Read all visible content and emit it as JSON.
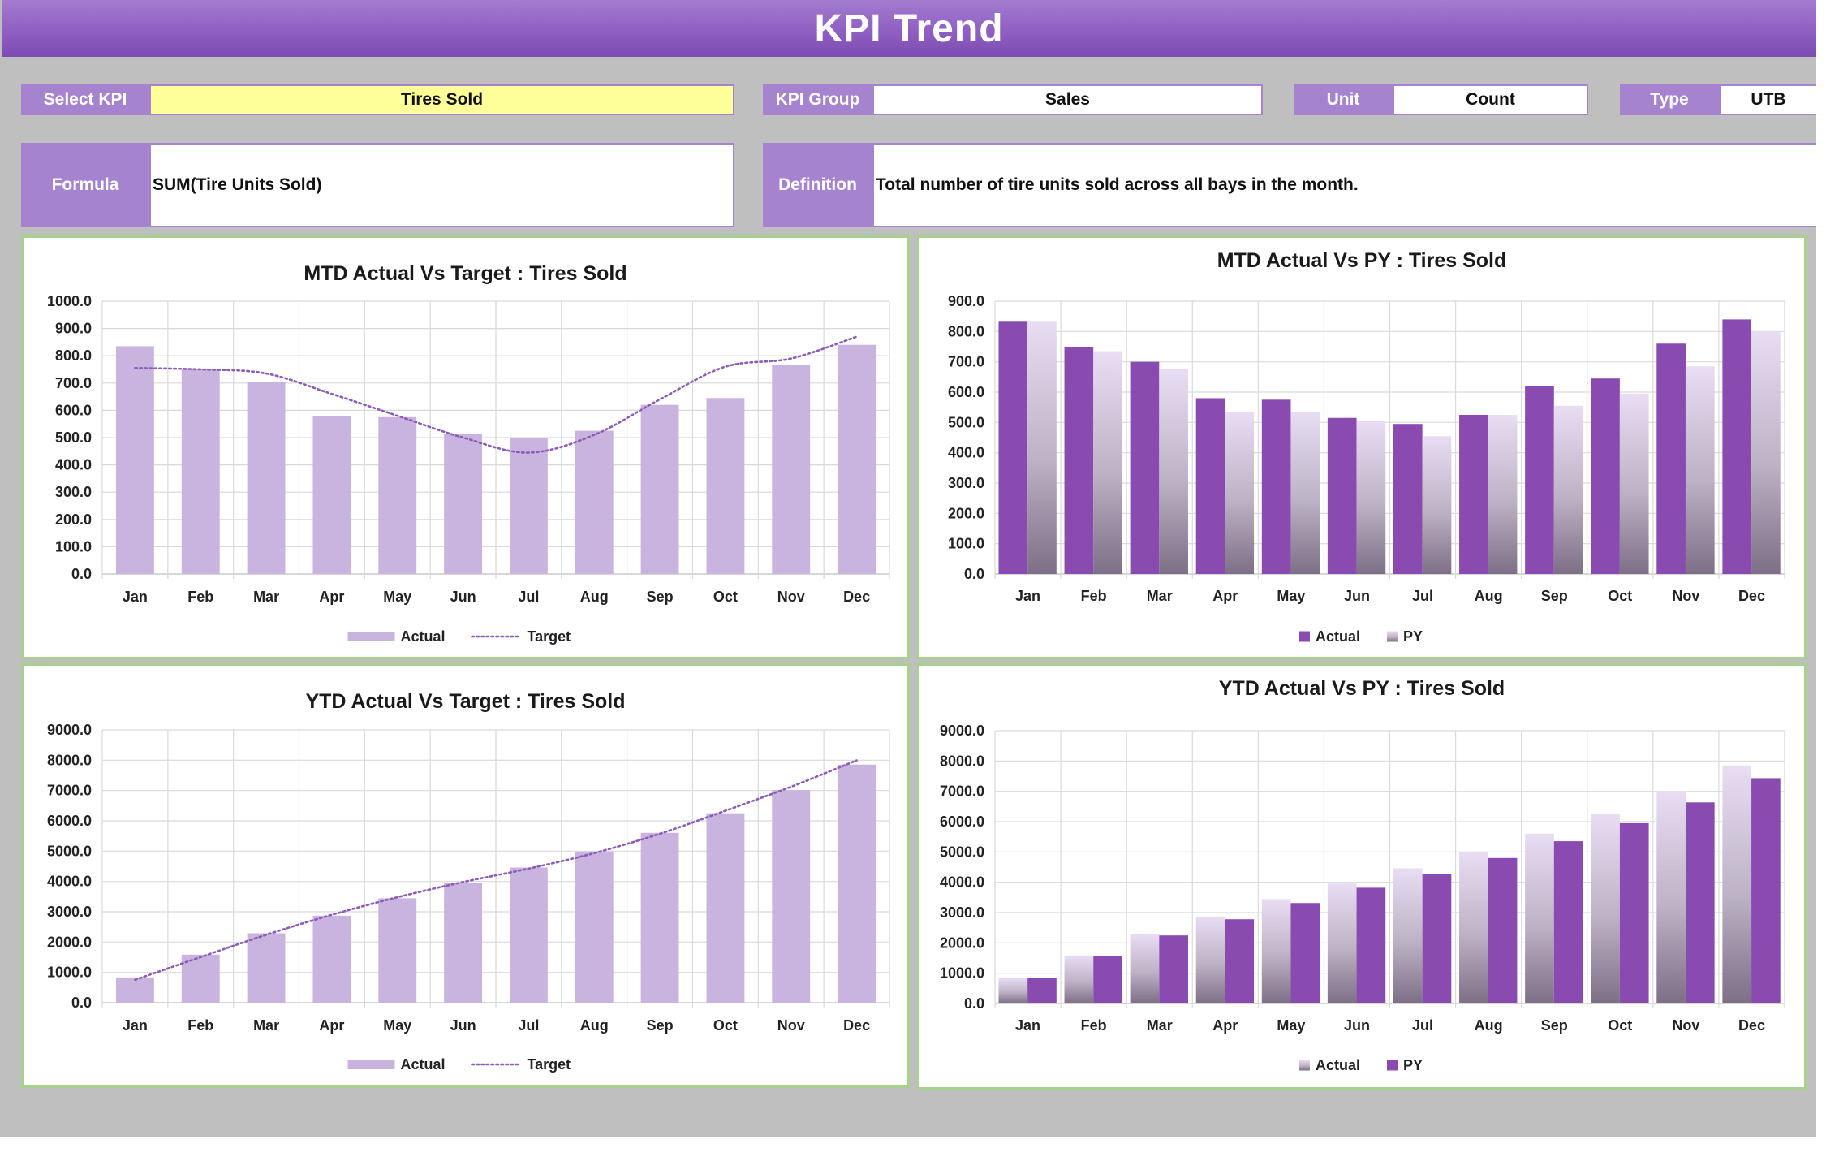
{
  "header": {
    "title": "KPI Trend"
  },
  "filters": {
    "select_kpi_label": "Select KPI",
    "select_kpi_value": "Tires Sold",
    "kpi_group_label": "KPI Group",
    "kpi_group_value": "Sales",
    "unit_label": "Unit",
    "unit_value": "Count",
    "type_label": "Type",
    "type_value": "UTB",
    "formula_label": "Formula",
    "formula_value": "SUM(Tire Units Sold)",
    "definition_label": "Definition",
    "definition_value": "Total number of tire units sold across all bays in the month."
  },
  "colors": {
    "light_purple": "#c9b3df",
    "dark_purple": "#8a4bb0",
    "target_line": "#8a5cb5",
    "panel_border": "#a9d18e",
    "label_bg": "#a683cf"
  },
  "chart_data": [
    {
      "id": "mtd_target",
      "type": "bar",
      "title": "MTD Actual Vs Target : Tires Sold",
      "categories": [
        "Jan",
        "Feb",
        "Mar",
        "Apr",
        "May",
        "Jun",
        "Jul",
        "Aug",
        "Sep",
        "Oct",
        "Nov",
        "Dec"
      ],
      "series": [
        {
          "name": "Actual",
          "kind": "bar",
          "style": "flat-light",
          "values": [
            835,
            750,
            705,
            580,
            575,
            515,
            500,
            525,
            620,
            645,
            765,
            840
          ]
        },
        {
          "name": "Target",
          "kind": "dotted-line",
          "values": [
            755,
            750,
            735,
            660,
            580,
            500,
            445,
            510,
            640,
            760,
            790,
            870
          ]
        }
      ],
      "ylim": [
        0,
        1000
      ],
      "yticks": [
        "0.0",
        "100.0",
        "200.0",
        "300.0",
        "400.0",
        "500.0",
        "600.0",
        "700.0",
        "800.0",
        "900.0",
        "1000.0"
      ],
      "legend": "bottom"
    },
    {
      "id": "mtd_py",
      "type": "bar",
      "title": "MTD Actual Vs PY : Tires Sold",
      "categories": [
        "Jan",
        "Feb",
        "Mar",
        "Apr",
        "May",
        "Jun",
        "Jul",
        "Aug",
        "Sep",
        "Oct",
        "Nov",
        "Dec"
      ],
      "series": [
        {
          "name": "Actual",
          "kind": "bar",
          "style": "solid-dark",
          "values": [
            835,
            750,
            700,
            580,
            575,
            515,
            495,
            525,
            620,
            645,
            760,
            840
          ]
        },
        {
          "name": "PY",
          "kind": "bar",
          "style": "gradient-light",
          "values": [
            835,
            735,
            675,
            535,
            535,
            505,
            455,
            525,
            555,
            595,
            685,
            800
          ]
        }
      ],
      "ylim": [
        0,
        900
      ],
      "yticks": [
        "0.0",
        "100.0",
        "200.0",
        "300.0",
        "400.0",
        "500.0",
        "600.0",
        "700.0",
        "800.0",
        "900.0"
      ],
      "legend": "bottom"
    },
    {
      "id": "ytd_target",
      "type": "bar",
      "title": "YTD Actual Vs Target : Tires Sold",
      "categories": [
        "Jan",
        "Feb",
        "Mar",
        "Apr",
        "May",
        "Jun",
        "Jul",
        "Aug",
        "Sep",
        "Oct",
        "Nov",
        "Dec"
      ],
      "series": [
        {
          "name": "Actual",
          "kind": "bar",
          "style": "flat-light",
          "values": [
            835,
            1585,
            2290,
            2870,
            3445,
            3960,
            4460,
            4985,
            5605,
            6250,
            7015,
            7855
          ]
        },
        {
          "name": "Target",
          "kind": "dotted-line",
          "values": [
            755,
            1505,
            2240,
            2900,
            3480,
            3980,
            4425,
            4935,
            5575,
            6335,
            7125,
            7995
          ]
        }
      ],
      "ylim": [
        0,
        9000
      ],
      "yticks": [
        "0.0",
        "1000.0",
        "2000.0",
        "3000.0",
        "4000.0",
        "5000.0",
        "6000.0",
        "7000.0",
        "8000.0",
        "9000.0"
      ],
      "legend": "bottom"
    },
    {
      "id": "ytd_py",
      "type": "bar",
      "title": "YTD Actual Vs PY : Tires Sold",
      "categories": [
        "Jan",
        "Feb",
        "Mar",
        "Apr",
        "May",
        "Jun",
        "Jul",
        "Aug",
        "Sep",
        "Oct",
        "Nov",
        "Dec"
      ],
      "series": [
        {
          "name": "Actual",
          "kind": "bar",
          "style": "gradient-light",
          "values": [
            835,
            1585,
            2290,
            2870,
            3445,
            3960,
            4460,
            4985,
            5605,
            6250,
            7015,
            7855
          ]
        },
        {
          "name": "PY",
          "kind": "bar",
          "style": "solid-dark",
          "values": [
            835,
            1570,
            2245,
            2780,
            3315,
            3820,
            4275,
            4800,
            5355,
            5950,
            6635,
            7435
          ]
        }
      ],
      "ylim": [
        0,
        9000
      ],
      "yticks": [
        "0.0",
        "1000.0",
        "2000.0",
        "3000.0",
        "4000.0",
        "5000.0",
        "6000.0",
        "7000.0",
        "8000.0",
        "9000.0"
      ],
      "legend": "bottom"
    }
  ]
}
